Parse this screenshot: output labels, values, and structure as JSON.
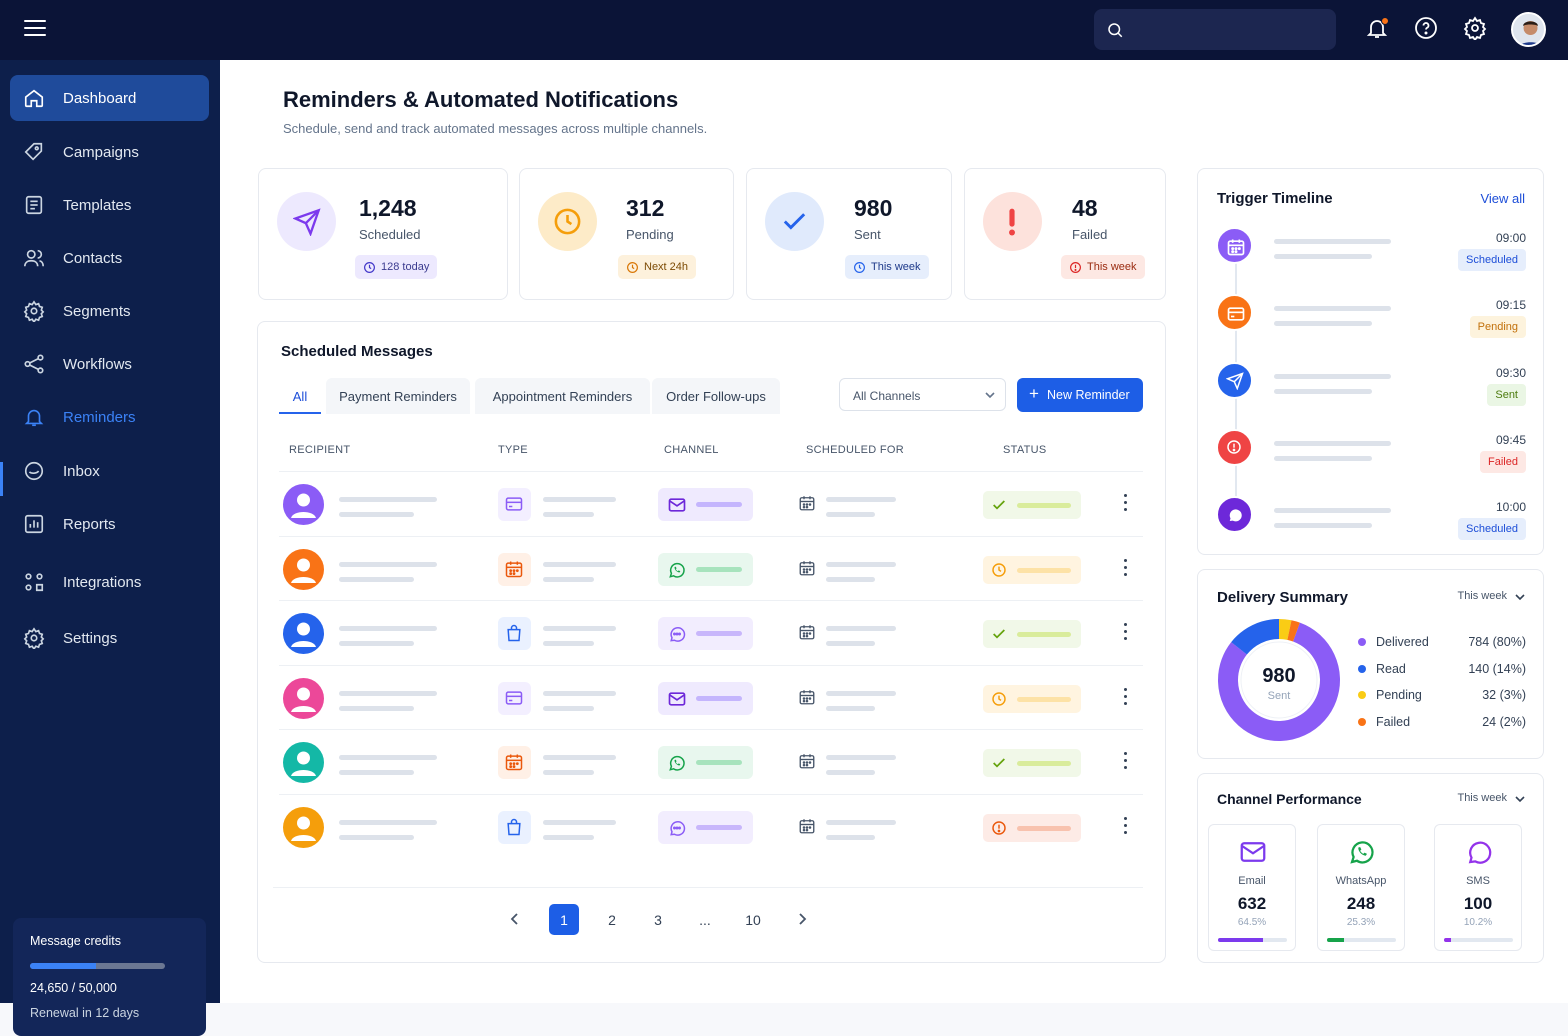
{
  "header": {
    "search_placeholder": ""
  },
  "sidebar": {
    "items": [
      {
        "label": "Dashboard",
        "icon": "home-icon"
      },
      {
        "label": "Campaigns",
        "icon": "tag-icon"
      },
      {
        "label": "Templates",
        "icon": "template-icon"
      },
      {
        "label": "Contacts",
        "icon": "contacts-icon"
      },
      {
        "label": "Segments",
        "icon": "segments-icon"
      },
      {
        "label": "Workflows",
        "icon": "workflow-icon"
      },
      {
        "label": "Reminders",
        "icon": "bell-icon"
      },
      {
        "label": "Inbox",
        "icon": "inbox-icon"
      },
      {
        "label": "Reports",
        "icon": "reports-icon"
      },
      {
        "label": "Integrations",
        "icon": "integrations-icon"
      },
      {
        "label": "Settings",
        "icon": "gear-icon"
      }
    ],
    "active": "Dashboard",
    "credits": {
      "title": "Message credits",
      "value": "24,650 / 50,000",
      "renewal": "Renewal in 12 days",
      "progress": 0.49
    }
  },
  "page": {
    "title": "Reminders & Automated Notifications",
    "subtitle": "Schedule, send and track automated messages across multiple channels."
  },
  "stats": [
    {
      "value": "1,248",
      "label": "Scheduled",
      "pill": "128 today",
      "icon": "send-icon",
      "color": "#7c3aed"
    },
    {
      "value": "312",
      "label": "Pending",
      "pill": "Next 24h",
      "icon": "clock-icon",
      "color": "#f59e0b"
    },
    {
      "value": "980",
      "label": "Sent",
      "pill": "This week",
      "icon": "check-icon",
      "color": "#2563eb"
    },
    {
      "value": "48",
      "label": "Failed",
      "pill": "This week",
      "icon": "alert-icon",
      "color": "#ef4444"
    }
  ],
  "scheduled": {
    "title": "Scheduled Messages",
    "tabs": [
      "All",
      "Payment Reminders",
      "Appointment Reminders",
      "Order Follow-ups"
    ],
    "channel_filter": "All Channels",
    "new_button": "New Reminder",
    "columns": [
      "RECIPIENT",
      "TYPE",
      "CHANNEL",
      "SCHEDULED FOR",
      "STATUS"
    ],
    "rows": [
      {
        "avatar_color": "#8b5cf6",
        "type": "card-icon",
        "channel": "email-icon",
        "status": "check-icon"
      },
      {
        "avatar_color": "#f97316",
        "type": "calendar-icon",
        "channel": "whatsapp-icon",
        "status": "clock-icon"
      },
      {
        "avatar_color": "#2563eb",
        "type": "bag-icon",
        "channel": "sms-icon",
        "status": "check-icon"
      },
      {
        "avatar_color": "#ec4899",
        "type": "card-icon",
        "channel": "email-icon",
        "status": "clock-icon"
      },
      {
        "avatar_color": "#14b8a6",
        "type": "calendar-icon",
        "channel": "whatsapp-icon",
        "status": "check-icon"
      },
      {
        "avatar_color": "#f59e0b",
        "type": "bag-icon",
        "channel": "sms-icon",
        "status": "alert-icon"
      }
    ],
    "pagination": [
      "1",
      "2",
      "3",
      "...",
      "10"
    ]
  },
  "timeline": {
    "title": "Trigger Timeline",
    "view_all": "View all",
    "items": [
      {
        "time": "09:00",
        "status": "Scheduled",
        "color": "#8b5cf6",
        "icon": "calendar-icon"
      },
      {
        "time": "09:15",
        "status": "Pending",
        "color": "#f97316",
        "icon": "card-icon"
      },
      {
        "time": "09:30",
        "status": "Sent",
        "color": "#2563eb",
        "icon": "send-icon"
      },
      {
        "time": "09:45",
        "status": "Failed",
        "color": "#ef4444",
        "icon": "alert-icon"
      },
      {
        "time": "10:00",
        "status": "Scheduled",
        "color": "#6d28d9",
        "icon": "chat-icon"
      }
    ]
  },
  "delivery": {
    "title": "Delivery Summary",
    "period": "This week",
    "total": "980",
    "total_label": "Sent",
    "legend": [
      {
        "name": "Delivered",
        "value": "784 (80%)",
        "color": "#8b5cf6"
      },
      {
        "name": "Read",
        "value": "140 (14%)",
        "color": "#2563eb"
      },
      {
        "name": "Pending",
        "value": "32 (3%)",
        "color": "#facc15"
      },
      {
        "name": "Failed",
        "value": "24 (2%)",
        "color": "#f97316"
      }
    ]
  },
  "channels": {
    "title": "Channel Performance",
    "period": "This week",
    "items": [
      {
        "name": "Email",
        "value": "632",
        "pct": "64.5%",
        "color": "#7c3aed",
        "icon": "email-icon",
        "fraction": 0.645
      },
      {
        "name": "WhatsApp",
        "value": "248",
        "pct": "25.3%",
        "color": "#16a34a",
        "icon": "whatsapp-icon",
        "fraction": 0.253
      },
      {
        "name": "SMS",
        "value": "100",
        "pct": "10.2%",
        "color": "#9333ea",
        "icon": "sms-icon",
        "fraction": 0.102
      }
    ]
  }
}
